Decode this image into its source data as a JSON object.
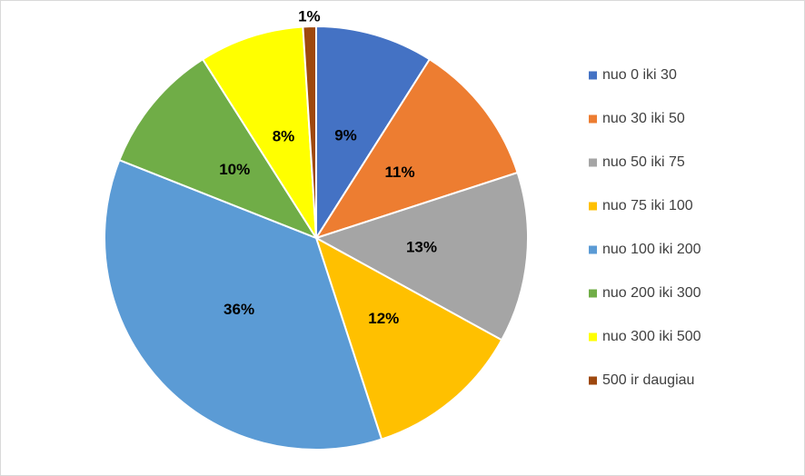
{
  "chart_data": {
    "type": "pie",
    "categories": [
      "nuo 0 iki 30",
      "nuo 30 iki 50",
      "nuo 50 iki 75",
      "nuo 75 iki 100",
      "nuo 100 iki 200",
      "nuo 200 iki 300",
      "nuo 300 iki 500",
      "500 ir daugiau"
    ],
    "values": [
      9,
      11,
      13,
      12,
      36,
      10,
      8,
      1
    ],
    "value_labels": [
      "9%",
      "11%",
      "13%",
      "12%",
      "36%",
      "10%",
      "8%",
      "1%"
    ],
    "colors": [
      "#4472c4",
      "#ed7d31",
      "#a5a5a5",
      "#ffc000",
      "#5b9bd5",
      "#70ad47",
      "#ffff00",
      "#9e480e"
    ],
    "legend": "right"
  }
}
